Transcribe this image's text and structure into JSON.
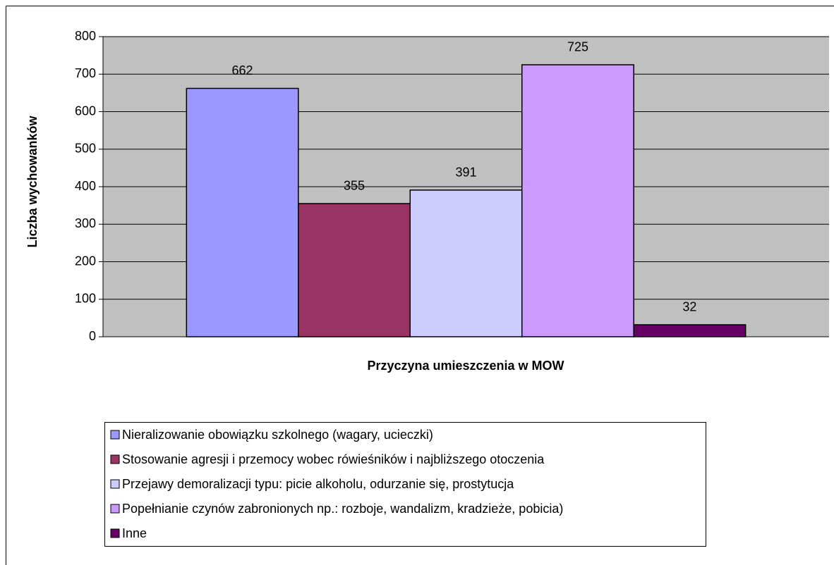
{
  "chart_data": {
    "type": "bar",
    "categories": [
      null
    ],
    "series": [
      {
        "name": "Nieralizowanie obowiązku szkolnego (wagary, ucieczki)",
        "color": "#9999ff",
        "values": [
          662
        ]
      },
      {
        "name": "Stosowanie agresji i przemocy wobec rówieśników i najbliższego otoczenia",
        "color": "#993366",
        "values": [
          355
        ]
      },
      {
        "name": "Przejawy demoralizacji typu: picie alkoholu, odurzanie się, prostytucja",
        "color": "#ccccff",
        "values": [
          391
        ]
      },
      {
        "name": "Popełnianie czynów zabronionych np.: rozboje, wandalizm, kradzieże, pobicia)",
        "color": "#cc99ff",
        "values": [
          725
        ]
      },
      {
        "name": "Inne",
        "color": "#660066",
        "values": [
          32
        ]
      }
    ],
    "x_label": "Przyczyna umieszczenia w MOW",
    "y_label": "Liczba wychowanków",
    "ylim": [
      0,
      800
    ],
    "yticks": [
      0,
      100,
      200,
      300,
      400,
      500,
      600,
      700,
      800
    ],
    "grid": true,
    "plot_background": "#c0c0c0",
    "legend": "bottom"
  }
}
